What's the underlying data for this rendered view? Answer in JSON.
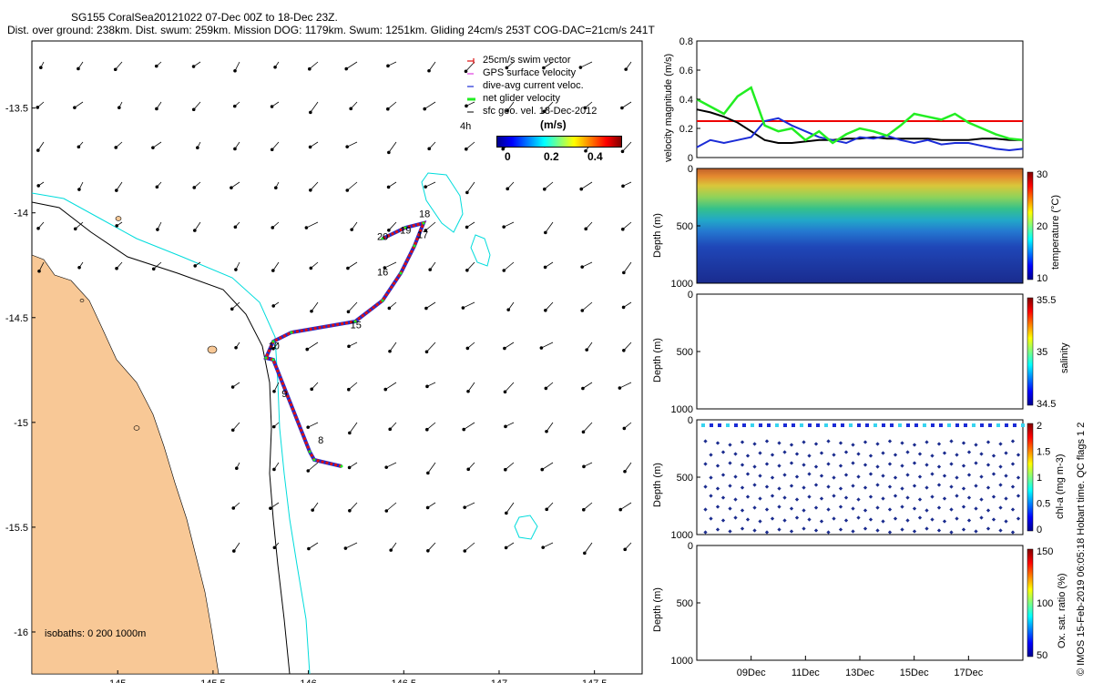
{
  "header": {
    "line1": "SG155 CoralSea20121022 07-Dec 00Z to 18-Dec 23Z.",
    "line2": "Dist. over ground: 238km. Dist. swum: 259km. Mission DOG: 1179km. Swum: 1251km. Gliding 24cm/s 253T COG-DAC=21cm/s 241T"
  },
  "credit": "© IMOS 15-Feb-2019 06:05:18 Hobart time. QC flags 1  2",
  "map": {
    "x_ticks": [
      "145",
      "145.5",
      "146",
      "146.5",
      "147",
      "147.5"
    ],
    "y_ticks": [
      "-13.5",
      "-14",
      "-14.5",
      "-15",
      "-15.5",
      "-16"
    ],
    "xlim": [
      144.55,
      147.75
    ],
    "ylim": [
      -16.2,
      -13.18
    ],
    "isobaths_label": "isobaths: 0   200  1000m",
    "legend": {
      "items": [
        "25cm/s swim vector",
        "GPS surface velocity",
        "dive-avg current veloc.",
        "net glider velocity",
        "sfc geo. vel. 18-Dec-2012"
      ],
      "time_label": "4h",
      "unit": "(m/s)",
      "cbar_ticks": [
        "0",
        "0.2",
        "0.4"
      ]
    },
    "day_labels": [
      {
        "text": "8",
        "lon": 146.05,
        "lat": -15.1
      },
      {
        "text": "9",
        "lon": 145.86,
        "lat": -14.88
      },
      {
        "text": "10",
        "lon": 145.79,
        "lat": -14.65
      },
      {
        "text": "15",
        "lon": 146.22,
        "lat": -14.55
      },
      {
        "text": "16",
        "lon": 146.36,
        "lat": -14.3
      },
      {
        "text": "17",
        "lon": 146.57,
        "lat": -14.12
      },
      {
        "text": "18",
        "lon": 146.58,
        "lat": -14.02
      },
      {
        "text": "19",
        "lon": 146.48,
        "lat": -14.1
      },
      {
        "text": "20",
        "lon": 146.36,
        "lat": -14.13
      }
    ],
    "colors": {
      "land": "#f8c896",
      "isobath200": "#00dcdc",
      "isobath1000": "#000000",
      "swim": "#d11",
      "dac": "#1a2bd6",
      "net": "#22ee22",
      "magenta": "#e040e0"
    }
  },
  "chart_data": [
    {
      "type": "line",
      "ylabel": "velocity magnitude (m/s)",
      "ylim": [
        0,
        0.8
      ],
      "y_ticks": [
        "0",
        "0.2",
        "0.4",
        "0.6",
        "0.8"
      ],
      "xlim_days": [
        7.0,
        19.0
      ],
      "series": [
        {
          "color": "#ee0000",
          "x": [
            7,
            19
          ],
          "values": [
            0.25,
            0.25
          ]
        },
        {
          "color": "#000000",
          "x": [
            7,
            7.5,
            8,
            8.5,
            9,
            9.5,
            10,
            10.5,
            11,
            11.5,
            12,
            12.5,
            13,
            13.5,
            14,
            14.5,
            15,
            15.5,
            16,
            16.5,
            17,
            17.5,
            18,
            18.5,
            19
          ],
          "values": [
            0.33,
            0.31,
            0.28,
            0.24,
            0.18,
            0.12,
            0.1,
            0.1,
            0.11,
            0.12,
            0.12,
            0.13,
            0.13,
            0.14,
            0.13,
            0.13,
            0.13,
            0.13,
            0.12,
            0.12,
            0.12,
            0.13,
            0.13,
            0.12,
            0.12
          ]
        },
        {
          "color": "#1a2bd6",
          "x": [
            7,
            7.5,
            8,
            8.5,
            9,
            9.5,
            10,
            10.5,
            11,
            11.5,
            12,
            12.5,
            13,
            13.5,
            14,
            14.5,
            15,
            15.5,
            16,
            16.5,
            17,
            17.5,
            18,
            18.5,
            19
          ],
          "values": [
            0.07,
            0.12,
            0.1,
            0.12,
            0.14,
            0.25,
            0.27,
            0.22,
            0.18,
            0.14,
            0.12,
            0.1,
            0.14,
            0.13,
            0.15,
            0.12,
            0.1,
            0.12,
            0.09,
            0.1,
            0.1,
            0.08,
            0.06,
            0.05,
            0.06
          ]
        },
        {
          "color": "#22ee22",
          "x": [
            7,
            7.5,
            8,
            8.5,
            9,
            9.5,
            10,
            10.5,
            11,
            11.5,
            12,
            12.5,
            13,
            13.5,
            14,
            14.5,
            15,
            15.5,
            16,
            16.5,
            17,
            17.5,
            18,
            18.5,
            19
          ],
          "values": [
            0.4,
            0.35,
            0.3,
            0.42,
            0.48,
            0.22,
            0.18,
            0.2,
            0.12,
            0.18,
            0.1,
            0.16,
            0.2,
            0.18,
            0.15,
            0.22,
            0.3,
            0.28,
            0.26,
            0.3,
            0.24,
            0.2,
            0.16,
            0.13,
            0.12
          ]
        }
      ]
    }
  ],
  "profiles": {
    "x_ticks": [
      "09Dec",
      "11Dec",
      "13Dec",
      "15Dec",
      "17Dec"
    ],
    "depth_label": "Depth (m)",
    "depth_ticks": [
      "0",
      "500",
      "1000"
    ],
    "panels": [
      {
        "id": "temperature",
        "cbar_label": "temperature (°C)",
        "cbar_ticks": [
          "10",
          "20",
          "30"
        ]
      },
      {
        "id": "salinity",
        "cbar_label": "salinity",
        "cbar_ticks": [
          "34.5",
          "35",
          "35.5"
        ]
      },
      {
        "id": "chla",
        "cbar_label": "chl-a (mg m-3)",
        "cbar_ticks": [
          "0",
          "0.5",
          "1",
          "1.5",
          "2"
        ]
      },
      {
        "id": "oxygen",
        "cbar_label": "Ox. sat. ratio (%)",
        "cbar_ticks": [
          "50",
          "100",
          "150"
        ]
      }
    ]
  }
}
